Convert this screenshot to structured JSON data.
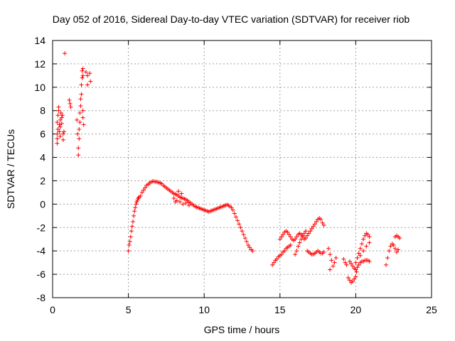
{
  "chart_data": {
    "type": "scatter",
    "title": "Day 052 of 2016, Sidereal Day-to-day VTEC variation (SDTVAR) for receiver riob",
    "xlabel": "GPS time / hours",
    "ylabel": "SDTVAR / TECUs",
    "xlim": [
      0,
      25
    ],
    "ylim": [
      -8,
      14
    ],
    "xticks": [
      0,
      5,
      10,
      15,
      20,
      25
    ],
    "yticks": [
      -8,
      -6,
      -4,
      -2,
      0,
      2,
      4,
      6,
      8,
      10,
      12,
      14
    ],
    "grid": true,
    "marker": "+",
    "marker_color": "#ff0000",
    "series": [
      {
        "name": "SDTVAR",
        "points": [
          [
            0.3,
            5.2
          ],
          [
            0.3,
            5.6
          ],
          [
            0.3,
            6.0
          ],
          [
            0.35,
            6.4
          ],
          [
            0.3,
            7.0
          ],
          [
            0.35,
            7.6
          ],
          [
            0.4,
            8.0
          ],
          [
            0.4,
            8.3
          ],
          [
            0.45,
            6.8
          ],
          [
            0.45,
            6.2
          ],
          [
            0.5,
            5.8
          ],
          [
            0.5,
            6.6
          ],
          [
            0.5,
            7.2
          ],
          [
            0.55,
            7.8
          ],
          [
            0.6,
            7.4
          ],
          [
            0.6,
            6.9
          ],
          [
            0.65,
            7.6
          ],
          [
            0.7,
            6.0
          ],
          [
            0.7,
            5.5
          ],
          [
            0.75,
            6.2
          ],
          [
            0.8,
            12.9
          ],
          [
            1.1,
            8.9
          ],
          [
            1.15,
            8.6
          ],
          [
            1.2,
            8.3
          ],
          [
            1.6,
            7.2
          ],
          [
            1.65,
            6.0
          ],
          [
            1.7,
            4.2
          ],
          [
            1.7,
            4.8
          ],
          [
            1.75,
            5.6
          ],
          [
            1.75,
            6.4
          ],
          [
            1.8,
            7.0
          ],
          [
            1.8,
            7.8
          ],
          [
            1.85,
            8.4
          ],
          [
            1.85,
            9.0
          ],
          [
            1.9,
            9.4
          ],
          [
            1.9,
            10.2
          ],
          [
            1.95,
            11.4
          ],
          [
            1.95,
            10.8
          ],
          [
            2.0,
            11.0
          ],
          [
            2.0,
            8.0
          ],
          [
            2.0,
            7.4
          ],
          [
            2.05,
            6.8
          ],
          [
            2.0,
            11.6
          ],
          [
            2.2,
            11.3
          ],
          [
            2.3,
            11.0
          ],
          [
            2.3,
            10.2
          ],
          [
            2.45,
            11.2
          ],
          [
            2.5,
            10.5
          ],
          [
            5.0,
            -4.0
          ],
          [
            5.05,
            -3.5
          ],
          [
            5.1,
            -3.2
          ],
          [
            5.15,
            -2.8
          ],
          [
            5.2,
            -2.3
          ],
          [
            5.25,
            -1.9
          ],
          [
            5.3,
            -1.5
          ],
          [
            5.35,
            -1.0
          ],
          [
            5.4,
            -0.6
          ],
          [
            5.45,
            -0.3
          ],
          [
            5.5,
            0.0
          ],
          [
            5.55,
            0.2
          ],
          [
            5.6,
            0.35
          ],
          [
            5.65,
            0.5
          ],
          [
            5.7,
            0.6
          ],
          [
            5.8,
            0.7
          ],
          [
            5.9,
            1.0
          ],
          [
            6.0,
            1.2
          ],
          [
            6.1,
            1.4
          ],
          [
            6.2,
            1.6
          ],
          [
            6.3,
            1.7
          ],
          [
            6.4,
            1.8
          ],
          [
            6.5,
            1.9
          ],
          [
            6.6,
            1.95
          ],
          [
            6.7,
            1.95
          ],
          [
            6.8,
            1.9
          ],
          [
            6.9,
            1.9
          ],
          [
            7.0,
            1.85
          ],
          [
            7.1,
            1.8
          ],
          [
            7.2,
            1.75
          ],
          [
            7.3,
            1.6
          ],
          [
            7.4,
            1.5
          ],
          [
            7.5,
            1.4
          ],
          [
            7.6,
            1.3
          ],
          [
            7.7,
            1.2
          ],
          [
            7.8,
            1.1
          ],
          [
            7.9,
            1.0
          ],
          [
            8.0,
            0.9
          ],
          [
            8.1,
            0.85
          ],
          [
            8.2,
            0.8
          ],
          [
            8.3,
            0.7
          ],
          [
            8.4,
            0.6
          ],
          [
            8.5,
            0.55
          ],
          [
            8.6,
            0.5
          ],
          [
            8.7,
            0.45
          ],
          [
            8.8,
            0.4
          ],
          [
            8.9,
            0.3
          ],
          [
            9.0,
            0.2
          ],
          [
            9.1,
            0.1
          ],
          [
            9.2,
            0.0
          ],
          [
            9.3,
            -0.1
          ],
          [
            9.4,
            -0.2
          ],
          [
            9.5,
            -0.25
          ],
          [
            9.6,
            -0.3
          ],
          [
            9.7,
            -0.35
          ],
          [
            9.8,
            -0.4
          ],
          [
            9.9,
            -0.45
          ],
          [
            10.0,
            -0.5
          ],
          [
            10.1,
            -0.55
          ],
          [
            10.2,
            -0.6
          ],
          [
            10.3,
            -0.65
          ],
          [
            10.4,
            -0.6
          ],
          [
            10.5,
            -0.55
          ],
          [
            10.6,
            -0.5
          ],
          [
            10.7,
            -0.45
          ],
          [
            10.8,
            -0.4
          ],
          [
            10.9,
            -0.35
          ],
          [
            11.0,
            -0.3
          ],
          [
            11.1,
            -0.25
          ],
          [
            11.2,
            -0.2
          ],
          [
            11.3,
            -0.15
          ],
          [
            11.4,
            -0.1
          ],
          [
            11.5,
            -0.05
          ],
          [
            11.6,
            -0.1
          ],
          [
            11.7,
            -0.2
          ],
          [
            11.8,
            -0.3
          ],
          [
            11.9,
            -0.5
          ],
          [
            12.0,
            -0.8
          ],
          [
            12.1,
            -1.1
          ],
          [
            12.2,
            -1.4
          ],
          [
            12.3,
            -1.7
          ],
          [
            12.4,
            -2.0
          ],
          [
            12.5,
            -2.3
          ],
          [
            12.6,
            -2.6
          ],
          [
            12.7,
            -2.9
          ],
          [
            12.8,
            -3.2
          ],
          [
            12.9,
            -3.5
          ],
          [
            13.0,
            -3.7
          ],
          [
            13.1,
            -3.9
          ],
          [
            13.2,
            -4.0
          ],
          [
            8.0,
            0.5
          ],
          [
            8.2,
            0.3
          ],
          [
            8.4,
            0.2
          ],
          [
            8.6,
            0.0
          ],
          [
            8.8,
            0.1
          ],
          [
            9.0,
            -0.1
          ],
          [
            8.3,
            1.1
          ],
          [
            8.5,
            0.9
          ],
          [
            8.1,
            0.2
          ],
          [
            14.5,
            -5.2
          ],
          [
            14.6,
            -5.0
          ],
          [
            14.7,
            -4.8
          ],
          [
            14.8,
            -4.7
          ],
          [
            14.9,
            -4.5
          ],
          [
            15.0,
            -4.4
          ],
          [
            15.1,
            -4.3
          ],
          [
            15.2,
            -4.1
          ],
          [
            15.3,
            -4.0
          ],
          [
            15.4,
            -3.8
          ],
          [
            15.5,
            -3.7
          ],
          [
            15.6,
            -3.6
          ],
          [
            15.7,
            -3.5
          ],
          [
            15.0,
            -3.0
          ],
          [
            15.1,
            -2.8
          ],
          [
            15.2,
            -2.6
          ],
          [
            15.3,
            -2.4
          ],
          [
            15.4,
            -2.3
          ],
          [
            15.5,
            -2.4
          ],
          [
            15.6,
            -2.6
          ],
          [
            15.7,
            -2.8
          ],
          [
            15.8,
            -3.0
          ],
          [
            15.9,
            -3.1
          ],
          [
            16.0,
            -3.0
          ],
          [
            16.1,
            -2.8
          ],
          [
            16.2,
            -2.6
          ],
          [
            16.3,
            -2.5
          ],
          [
            16.4,
            -2.6
          ],
          [
            16.5,
            -2.8
          ],
          [
            16.6,
            -3.0
          ],
          [
            16.7,
            -2.9
          ],
          [
            16.8,
            -2.7
          ],
          [
            16.9,
            -2.5
          ],
          [
            17.0,
            -2.3
          ],
          [
            17.1,
            -2.1
          ],
          [
            17.2,
            -1.9
          ],
          [
            17.3,
            -1.7
          ],
          [
            17.4,
            -1.5
          ],
          [
            17.5,
            -1.3
          ],
          [
            17.6,
            -1.2
          ],
          [
            17.7,
            -1.3
          ],
          [
            17.8,
            -1.6
          ],
          [
            17.9,
            -1.8
          ],
          [
            16.0,
            -4.3
          ],
          [
            16.1,
            -4.0
          ],
          [
            16.2,
            -3.6
          ],
          [
            16.3,
            -3.3
          ],
          [
            16.4,
            -3.0
          ],
          [
            16.5,
            -2.7
          ],
          [
            16.6,
            -2.5
          ],
          [
            16.7,
            -2.3
          ],
          [
            16.8,
            -4.0
          ],
          [
            16.9,
            -4.1
          ],
          [
            17.0,
            -4.2
          ],
          [
            17.1,
            -4.3
          ],
          [
            17.2,
            -4.3
          ],
          [
            17.3,
            -4.2
          ],
          [
            17.4,
            -4.1
          ],
          [
            17.5,
            -4.0
          ],
          [
            17.6,
            -4.1
          ],
          [
            17.7,
            -4.2
          ],
          [
            17.8,
            -4.2
          ],
          [
            17.9,
            -4.1
          ],
          [
            18.2,
            -3.8
          ],
          [
            18.3,
            -4.3
          ],
          [
            18.4,
            -4.8
          ],
          [
            18.5,
            -5.3
          ],
          [
            18.6,
            -5.0
          ],
          [
            18.7,
            -4.6
          ],
          [
            18.3,
            -5.6
          ],
          [
            19.2,
            -4.7
          ],
          [
            19.3,
            -5.0
          ],
          [
            19.4,
            -5.2
          ],
          [
            19.5,
            -6.3
          ],
          [
            19.6,
            -6.5
          ],
          [
            19.7,
            -6.7
          ],
          [
            19.8,
            -6.6
          ],
          [
            19.9,
            -6.4
          ],
          [
            20.0,
            -6.2
          ],
          [
            20.05,
            -5.8
          ],
          [
            19.6,
            -4.9
          ],
          [
            19.7,
            -5.1
          ],
          [
            19.8,
            -5.3
          ],
          [
            19.9,
            -5.5
          ],
          [
            20.0,
            -5.6
          ],
          [
            20.1,
            -5.4
          ],
          [
            20.2,
            -5.2
          ],
          [
            20.3,
            -5.0
          ],
          [
            20.4,
            -4.9
          ],
          [
            20.5,
            -4.9
          ],
          [
            20.6,
            -4.8
          ],
          [
            20.7,
            -4.8
          ],
          [
            20.8,
            -4.8
          ],
          [
            20.9,
            -4.9
          ],
          [
            20.0,
            -5.0
          ],
          [
            20.1,
            -4.6
          ],
          [
            20.2,
            -4.2
          ],
          [
            20.3,
            -3.8
          ],
          [
            20.4,
            -3.4
          ],
          [
            20.5,
            -3.0
          ],
          [
            20.6,
            -2.7
          ],
          [
            20.7,
            -2.5
          ],
          [
            20.8,
            -2.6
          ],
          [
            20.9,
            -2.8
          ],
          [
            20.3,
            -4.4
          ],
          [
            20.5,
            -4.0
          ],
          [
            20.7,
            -3.6
          ],
          [
            20.9,
            -3.3
          ],
          [
            22.0,
            -5.2
          ],
          [
            22.1,
            -4.6
          ],
          [
            22.2,
            -4.0
          ],
          [
            22.3,
            -3.6
          ],
          [
            22.4,
            -3.4
          ],
          [
            22.5,
            -3.5
          ],
          [
            22.6,
            -3.8
          ],
          [
            22.7,
            -4.1
          ],
          [
            22.8,
            -3.9
          ],
          [
            22.6,
            -2.8
          ],
          [
            22.7,
            -2.7
          ],
          [
            22.8,
            -2.8
          ],
          [
            22.9,
            -2.9
          ]
        ]
      }
    ]
  }
}
